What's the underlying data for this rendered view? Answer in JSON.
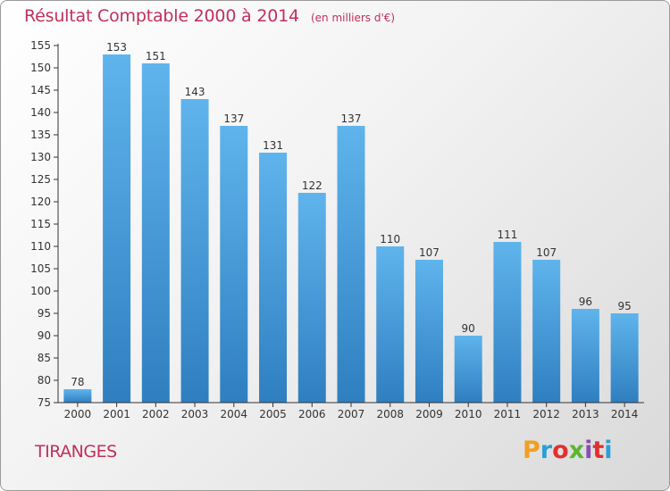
{
  "header": {
    "title": "Résultat Comptable 2000 à 2014",
    "unit": "(en milliers d'€)"
  },
  "footer": {
    "commune": "TIRANGES",
    "logo_text": "Proxiti"
  },
  "colors": {
    "title": "#c0305a",
    "bar_top": "#5fb4ec",
    "bar_bottom": "#2f7fc0",
    "logo": [
      "#f0a020",
      "#2a9fd6",
      "#e03030",
      "#5cb531",
      "#8b4fb3",
      "#e03030",
      "#2a9fd6"
    ]
  },
  "chart_data": {
    "type": "bar",
    "title": "Résultat Comptable 2000 à 2014",
    "categories": [
      "2000",
      "2001",
      "2002",
      "2003",
      "2004",
      "2005",
      "2006",
      "2007",
      "2008",
      "2009",
      "2010",
      "2011",
      "2012",
      "2013",
      "2014"
    ],
    "values": [
      78,
      153,
      151,
      143,
      137,
      131,
      122,
      137,
      110,
      107,
      90,
      111,
      107,
      96,
      95
    ],
    "ylim": [
      75,
      155
    ],
    "yticks": [
      75,
      80,
      85,
      90,
      95,
      100,
      105,
      110,
      115,
      120,
      125,
      130,
      135,
      140,
      145,
      150,
      155
    ],
    "grid": false,
    "xlabel": "",
    "ylabel": ""
  }
}
